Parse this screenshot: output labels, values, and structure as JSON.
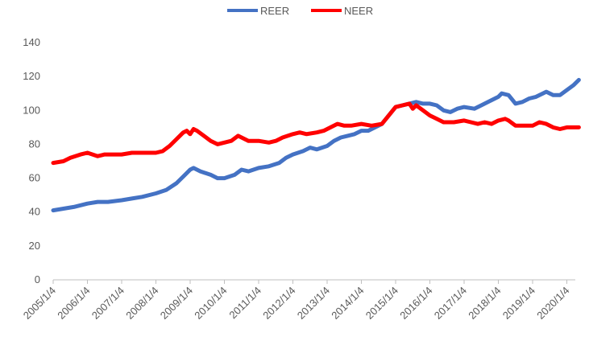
{
  "chart_data": {
    "type": "line",
    "title": "",
    "xlabel": "",
    "ylabel": "",
    "ylim": [
      0,
      140
    ],
    "yticks": [
      0,
      20,
      40,
      60,
      80,
      100,
      120,
      140
    ],
    "x_tick_labels": [
      "2005/1/4",
      "2006/1/4",
      "2007/1/4",
      "2008/1/4",
      "2009/1/4",
      "2010/1/4",
      "2011/1/4",
      "2012/1/4",
      "2013/1/4",
      "2014/1/4",
      "2015/1/4",
      "2016/1/4",
      "2017/1/4",
      "2018/1/4",
      "2019/1/4",
      "2020/1/4"
    ],
    "xlim": [
      2005.0,
      2020.4
    ],
    "grid": false,
    "legend": "top",
    "series": [
      {
        "name": "REER",
        "color": "#4472C4",
        "points": [
          [
            2005.0,
            41
          ],
          [
            2005.3,
            42
          ],
          [
            2005.6,
            43
          ],
          [
            2006.0,
            45
          ],
          [
            2006.3,
            46
          ],
          [
            2006.6,
            46
          ],
          [
            2007.0,
            47
          ],
          [
            2007.3,
            48
          ],
          [
            2007.6,
            49
          ],
          [
            2008.0,
            51
          ],
          [
            2008.3,
            53
          ],
          [
            2008.6,
            57
          ],
          [
            2008.8,
            61
          ],
          [
            2009.0,
            65
          ],
          [
            2009.1,
            66
          ],
          [
            2009.3,
            64
          ],
          [
            2009.6,
            62
          ],
          [
            2009.8,
            60
          ],
          [
            2010.0,
            60
          ],
          [
            2010.3,
            62
          ],
          [
            2010.5,
            65
          ],
          [
            2010.7,
            64
          ],
          [
            2011.0,
            66
          ],
          [
            2011.3,
            67
          ],
          [
            2011.6,
            69
          ],
          [
            2011.8,
            72
          ],
          [
            2012.0,
            74
          ],
          [
            2012.3,
            76
          ],
          [
            2012.5,
            78
          ],
          [
            2012.7,
            77
          ],
          [
            2013.0,
            79
          ],
          [
            2013.2,
            82
          ],
          [
            2013.4,
            84
          ],
          [
            2013.6,
            85
          ],
          [
            2013.8,
            86
          ],
          [
            2014.0,
            88
          ],
          [
            2014.2,
            88
          ],
          [
            2014.4,
            90
          ],
          [
            2014.6,
            92
          ],
          [
            2014.8,
            97
          ],
          [
            2015.0,
            102
          ],
          [
            2015.2,
            103
          ],
          [
            2015.4,
            104
          ],
          [
            2015.6,
            105
          ],
          [
            2015.8,
            104
          ],
          [
            2016.0,
            104
          ],
          [
            2016.2,
            103
          ],
          [
            2016.4,
            100
          ],
          [
            2016.6,
            99
          ],
          [
            2016.8,
            101
          ],
          [
            2017.0,
            102
          ],
          [
            2017.3,
            101
          ],
          [
            2017.5,
            103
          ],
          [
            2017.8,
            106
          ],
          [
            2018.0,
            108
          ],
          [
            2018.1,
            110
          ],
          [
            2018.3,
            109
          ],
          [
            2018.5,
            104
          ],
          [
            2018.7,
            105
          ],
          [
            2018.9,
            107
          ],
          [
            2019.1,
            108
          ],
          [
            2019.3,
            110
          ],
          [
            2019.4,
            111
          ],
          [
            2019.6,
            109
          ],
          [
            2019.8,
            109
          ],
          [
            2020.0,
            112
          ],
          [
            2020.2,
            115
          ],
          [
            2020.35,
            118
          ]
        ]
      },
      {
        "name": "NEER",
        "color": "#FF0000",
        "points": [
          [
            2005.0,
            69
          ],
          [
            2005.3,
            70
          ],
          [
            2005.5,
            72
          ],
          [
            2005.8,
            74
          ],
          [
            2006.0,
            75
          ],
          [
            2006.3,
            73
          ],
          [
            2006.5,
            74
          ],
          [
            2006.8,
            74
          ],
          [
            2007.0,
            74
          ],
          [
            2007.3,
            75
          ],
          [
            2007.6,
            75
          ],
          [
            2007.9,
            75
          ],
          [
            2008.0,
            75
          ],
          [
            2008.2,
            76
          ],
          [
            2008.4,
            79
          ],
          [
            2008.6,
            83
          ],
          [
            2008.8,
            87
          ],
          [
            2008.9,
            88
          ],
          [
            2009.0,
            86
          ],
          [
            2009.1,
            89
          ],
          [
            2009.2,
            88
          ],
          [
            2009.4,
            85
          ],
          [
            2009.6,
            82
          ],
          [
            2009.8,
            80
          ],
          [
            2010.0,
            81
          ],
          [
            2010.2,
            82
          ],
          [
            2010.4,
            85
          ],
          [
            2010.5,
            84
          ],
          [
            2010.7,
            82
          ],
          [
            2011.0,
            82
          ],
          [
            2011.3,
            81
          ],
          [
            2011.5,
            82
          ],
          [
            2011.7,
            84
          ],
          [
            2012.0,
            86
          ],
          [
            2012.2,
            87
          ],
          [
            2012.4,
            86
          ],
          [
            2012.7,
            87
          ],
          [
            2012.9,
            88
          ],
          [
            2013.1,
            90
          ],
          [
            2013.3,
            92
          ],
          [
            2013.5,
            91
          ],
          [
            2013.7,
            91
          ],
          [
            2014.0,
            92
          ],
          [
            2014.3,
            91
          ],
          [
            2014.6,
            92
          ],
          [
            2014.8,
            97
          ],
          [
            2015.0,
            102
          ],
          [
            2015.2,
            103
          ],
          [
            2015.4,
            104
          ],
          [
            2015.5,
            101
          ],
          [
            2015.6,
            103
          ],
          [
            2015.8,
            100
          ],
          [
            2016.0,
            97
          ],
          [
            2016.2,
            95
          ],
          [
            2016.4,
            93
          ],
          [
            2016.7,
            93
          ],
          [
            2017.0,
            94
          ],
          [
            2017.2,
            93
          ],
          [
            2017.4,
            92
          ],
          [
            2017.6,
            93
          ],
          [
            2017.8,
            92
          ],
          [
            2018.0,
            94
          ],
          [
            2018.2,
            95
          ],
          [
            2018.3,
            94
          ],
          [
            2018.5,
            91
          ],
          [
            2018.8,
            91
          ],
          [
            2019.0,
            91
          ],
          [
            2019.2,
            93
          ],
          [
            2019.4,
            92
          ],
          [
            2019.6,
            90
          ],
          [
            2019.8,
            89
          ],
          [
            2020.0,
            90
          ],
          [
            2020.2,
            90
          ],
          [
            2020.35,
            90
          ]
        ]
      }
    ]
  }
}
